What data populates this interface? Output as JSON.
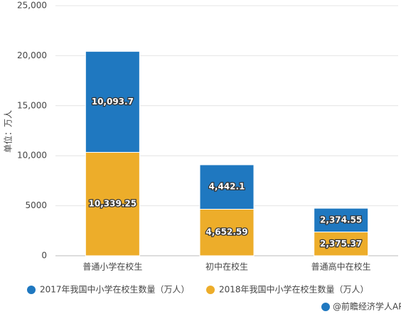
{
  "chart_data": {
    "type": "stacked-bar",
    "y_label": "单位：万人",
    "categories": [
      "普通小学在校生",
      "初中在校生",
      "普通高中在校生"
    ],
    "series": [
      {
        "name": "2017年我国中小学在校生数量（万人）",
        "color": "#1f78c0",
        "values": [
          10093.7,
          4442.1,
          2374.55
        ],
        "value_labels": [
          "10,093.7",
          "4,442.1",
          "2,374.55"
        ]
      },
      {
        "name": "2018年我国中小学在校生数量（万人）",
        "color": "#edad2a",
        "values": [
          10339.25,
          4652.59,
          2375.37
        ],
        "value_labels": [
          "10,339.25",
          "4,652.59",
          "2,375.37"
        ]
      }
    ],
    "ylim": [
      0,
      25000
    ],
    "yticks": [
      0,
      5000,
      {
        "value": 10000,
        "label": "10,000"
      },
      {
        "value": 15000,
        "label": "15,000"
      },
      {
        "value": 20000,
        "label": "20,000"
      },
      {
        "value": 25000,
        "label": "25,000"
      }
    ],
    "grid": true,
    "source": "@前瞻经济学人APP"
  }
}
